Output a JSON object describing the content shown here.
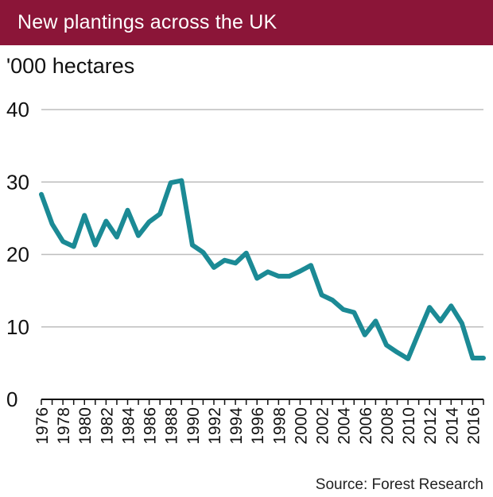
{
  "header": {
    "title": "New plantings across the UK"
  },
  "colors": {
    "title_bg": "#8b1538",
    "line": "#1b8a95",
    "grid": "#bdbdbd"
  },
  "footer": {
    "source": "Source: Forest Research"
  },
  "chart_data": {
    "type": "line",
    "title": "New plantings across the UK",
    "ylabel": "'000 hectares",
    "xlabel": "",
    "ylim": [
      0,
      40
    ],
    "xlim": [
      1976,
      2017
    ],
    "grid": true,
    "y_ticks": [
      0,
      10,
      20,
      30,
      40
    ],
    "y_tick_labels": [
      "0",
      "10",
      "20",
      "30",
      "40"
    ],
    "x_ticks": [
      1976,
      1978,
      1980,
      1982,
      1984,
      1986,
      1988,
      1990,
      1992,
      1994,
      1996,
      1998,
      2000,
      2002,
      2004,
      2006,
      2008,
      2010,
      2012,
      2014,
      2016
    ],
    "x_tick_labels": [
      "1976",
      "1978",
      "1980",
      "1982",
      "1984",
      "1986",
      "1988",
      "1990",
      "1992",
      "1994",
      "1996",
      "1998",
      "2000",
      "2002",
      "2004",
      "2006",
      "2008",
      "2010",
      "2012",
      "2014",
      "2016"
    ],
    "series": [
      {
        "name": "New plantings",
        "x": [
          1976,
          1977,
          1978,
          1979,
          1980,
          1981,
          1982,
          1983,
          1984,
          1985,
          1986,
          1987,
          1988,
          1989,
          1990,
          1991,
          1992,
          1993,
          1994,
          1995,
          1996,
          1997,
          1998,
          1999,
          2000,
          2001,
          2002,
          2003,
          2004,
          2005,
          2006,
          2007,
          2008,
          2009,
          2010,
          2011,
          2012,
          2013,
          2014,
          2015,
          2016,
          2017
        ],
        "values": [
          28.3,
          24.2,
          21.8,
          21.1,
          25.4,
          21.3,
          24.6,
          22.4,
          26.1,
          22.6,
          24.5,
          25.6,
          29.9,
          30.2,
          21.3,
          20.3,
          18.2,
          19.2,
          18.8,
          20.2,
          16.7,
          17.6,
          17.0,
          17.0,
          17.7,
          18.5,
          14.4,
          13.7,
          12.4,
          12.0,
          8.9,
          10.8,
          7.5,
          6.5,
          5.6,
          9.2,
          12.7,
          10.8,
          12.9,
          10.5,
          5.7,
          5.7
        ]
      }
    ]
  }
}
